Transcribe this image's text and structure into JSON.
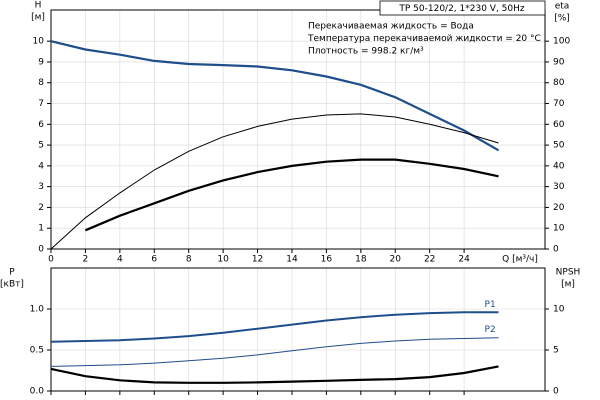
{
  "chart_data": [
    {
      "type": "line",
      "title": "TP 50-120/2, 1*230 V, 50Hz",
      "annotations": [
        "Перекачиваемая жидкость = Вода",
        "Температура перекачиваемой жидкости = 20 °C",
        "Плотность = 998.2 кг/м³"
      ],
      "ylabel": [
        "H",
        "[м]"
      ],
      "y2label": [
        "eta",
        "[%]"
      ],
      "xlabel": "Q [м³/ч]",
      "x": [
        0,
        2,
        4,
        6,
        8,
        10,
        12,
        14,
        16,
        18,
        20,
        22,
        24,
        26
      ],
      "xlim": [
        0,
        28.7
      ],
      "xticks": [
        0,
        2,
        4,
        6,
        8,
        10,
        12,
        14,
        16,
        18,
        20,
        22,
        24
      ],
      "xticklabels": true,
      "ylim": [
        0,
        11.5
      ],
      "yticks": [
        0,
        1,
        2,
        3,
        4,
        5,
        6,
        7,
        8,
        9,
        10
      ],
      "y2lim": [
        0,
        115
      ],
      "y2ticks": [
        0,
        10,
        20,
        30,
        40,
        50,
        60,
        70,
        80,
        90,
        100
      ],
      "grid": true,
      "series": [
        {
          "color": "#1f4e8c",
          "linewidth": 2.2,
          "values": [
            10,
            9.6,
            9.35,
            9.05,
            8.9,
            8.85,
            8.78,
            8.6,
            8.3,
            7.9,
            7.3,
            6.5,
            5.7,
            4.75
          ]
        },
        {
          "color": "#000000",
          "linewidth": 1,
          "axis": "y2",
          "values": [
            0,
            15,
            27,
            38,
            47,
            54,
            59,
            62.5,
            64.5,
            65,
            63.5,
            60,
            56,
            51
          ]
        },
        {
          "color": "#000000",
          "linewidth": 2.2,
          "axis": "y2",
          "values": [
            null,
            9,
            16,
            22,
            28,
            33,
            37,
            40,
            42,
            43,
            43,
            41,
            38.5,
            35
          ]
        }
      ]
    },
    {
      "type": "line",
      "ylabel": [
        "P",
        "[кВт]"
      ],
      "y2label": [
        "NPSH",
        "[м]"
      ],
      "x": [
        0,
        2,
        4,
        6,
        8,
        10,
        12,
        14,
        16,
        18,
        20,
        22,
        24,
        26
      ],
      "xlim": [
        0,
        28.7
      ],
      "xticks": [
        0,
        2,
        4,
        6,
        8,
        10,
        12,
        14,
        16,
        18,
        20,
        22,
        24
      ],
      "xticklabels": false,
      "ylim": [
        0,
        1.5
      ],
      "yticks": [
        {
          "value": 0,
          "label": "0.0"
        },
        0.5,
        {
          "value": 1,
          "label": "1.0"
        }
      ],
      "y2lim": [
        0,
        15
      ],
      "y2ticks": [
        0,
        5,
        10
      ],
      "grid": true,
      "series": [
        {
          "name": "P1",
          "color": "#1f4e8c",
          "linewidth": 2,
          "values": [
            0.6,
            0.61,
            0.62,
            0.64,
            0.67,
            0.71,
            0.76,
            0.81,
            0.86,
            0.9,
            0.93,
            0.95,
            0.96,
            0.96
          ]
        },
        {
          "name": "P2",
          "color": "#1f4e8c",
          "linewidth": 1,
          "values": [
            0.3,
            0.31,
            0.32,
            0.34,
            0.37,
            0.4,
            0.44,
            0.49,
            0.54,
            0.58,
            0.61,
            0.63,
            0.64,
            0.65
          ]
        },
        {
          "color": "#000000",
          "linewidth": 2.2,
          "axis": "y2",
          "values": [
            2.7,
            1.8,
            1.3,
            1.05,
            1.0,
            1.0,
            1.05,
            1.15,
            1.25,
            1.35,
            1.45,
            1.7,
            2.2,
            3.0
          ]
        }
      ]
    }
  ]
}
